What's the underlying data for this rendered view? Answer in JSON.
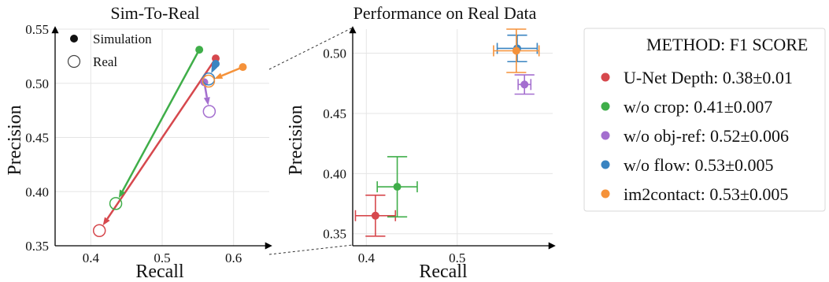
{
  "chart_data": [
    {
      "type": "scatter",
      "title": "Sim-To-Real",
      "xlabel": "Recall",
      "ylabel": "Precision",
      "xlim": [
        0.35,
        0.65
      ],
      "ylim": [
        0.35,
        0.55
      ],
      "xticks": [
        "0.4",
        "0.5",
        "0.6"
      ],
      "yticks": [
        "0.35",
        "0.40",
        "0.45",
        "0.50",
        "0.55"
      ],
      "grid": true,
      "legend": {
        "placement": "top-left",
        "entries": [
          {
            "label": "Simulation",
            "marker": "filled"
          },
          {
            "label": "Real",
            "marker": "hollow"
          }
        ]
      },
      "series": [
        {
          "name": "U-Net Depth",
          "color": "#d6484d",
          "sim": [
            0.575,
            0.523
          ],
          "real": [
            0.412,
            0.364
          ]
        },
        {
          "name": "w/o crop",
          "color": "#3fae49",
          "sim": [
            0.552,
            0.531
          ],
          "real": [
            0.435,
            0.389
          ]
        },
        {
          "name": "w/o obj-ref",
          "color": "#a46fcf",
          "sim": [
            0.559,
            0.501
          ],
          "real": [
            0.566,
            0.474
          ]
        },
        {
          "name": "w/o flow",
          "color": "#3a84c1",
          "sim": [
            0.575,
            0.518
          ],
          "real": [
            0.565,
            0.504
          ]
        },
        {
          "name": "im2contact",
          "color": "#f5923a",
          "sim": [
            0.613,
            0.515
          ],
          "real": [
            0.565,
            0.502
          ]
        }
      ]
    },
    {
      "type": "scatter",
      "title": "Performance on Real Data",
      "xlabel": "Recall",
      "ylabel": "Precision",
      "xlim": [
        0.385,
        0.605
      ],
      "ylim": [
        0.34,
        0.52
      ],
      "xticks": [
        "0.4",
        "0.5"
      ],
      "yticks": [
        "0.35",
        "0.40",
        "0.45",
        "0.50"
      ],
      "grid": true,
      "series": [
        {
          "name": "U-Net Depth",
          "color": "#d6484d",
          "x": 0.41,
          "y": 0.365,
          "xerr": 0.022,
          "yerr": 0.017
        },
        {
          "name": "w/o crop",
          "color": "#3fae49",
          "x": 0.434,
          "y": 0.389,
          "xerr": 0.022,
          "yerr": 0.025
        },
        {
          "name": "w/o obj-ref",
          "color": "#a46fcf",
          "x": 0.574,
          "y": 0.474,
          "xerr": 0.007,
          "yerr": 0.008
        },
        {
          "name": "w/o flow",
          "color": "#3a84c1",
          "x": 0.566,
          "y": 0.504,
          "xerr": 0.022,
          "yerr": 0.011
        },
        {
          "name": "im2contact",
          "color": "#f5923a",
          "x": 0.565,
          "y": 0.502,
          "xerr": 0.025,
          "yerr": 0.018
        }
      ]
    }
  ],
  "legend": {
    "title": "METHOD: F1 SCORE",
    "items": [
      {
        "label": "U-Net Depth: 0.38±0.01",
        "color": "#d6484d"
      },
      {
        "label": "w/o crop: 0.41±0.007",
        "color": "#3fae49"
      },
      {
        "label": "w/o obj-ref: 0.52±0.006",
        "color": "#a46fcf"
      },
      {
        "label": "w/o flow: 0.53±0.005",
        "color": "#3a84c1"
      },
      {
        "label": "im2contact: 0.53±0.005",
        "color": "#f5923a"
      }
    ]
  }
}
